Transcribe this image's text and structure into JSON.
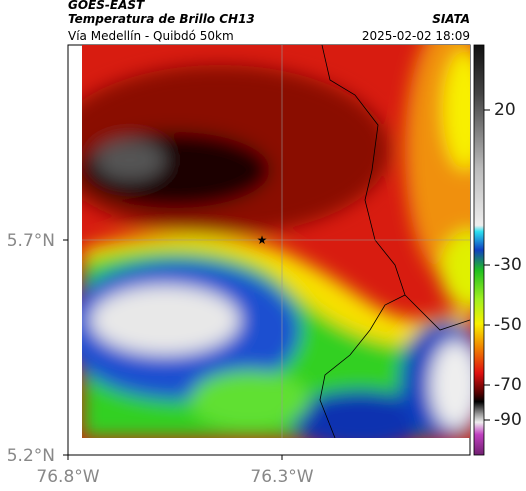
{
  "header": {
    "source": "GOES-EAST",
    "title": "Temperatura de Brillo CH13",
    "subtitle": "Vía Medellín - Quibdó 50km",
    "agency": "SIATA",
    "datetime": "2025-02-02 18:09"
  },
  "axes": {
    "y_ticks": [
      {
        "value": 5.7,
        "label": "5.7°N"
      },
      {
        "value": 5.2,
        "label": "5.2°N"
      }
    ],
    "x_ticks": [
      {
        "value": -76.8,
        "label": "76.8°W"
      },
      {
        "value": -76.3,
        "label": "76.3°W"
      }
    ]
  },
  "colorbar": {
    "ticks": [
      20,
      -30,
      -50,
      -70,
      -90
    ]
  }
}
